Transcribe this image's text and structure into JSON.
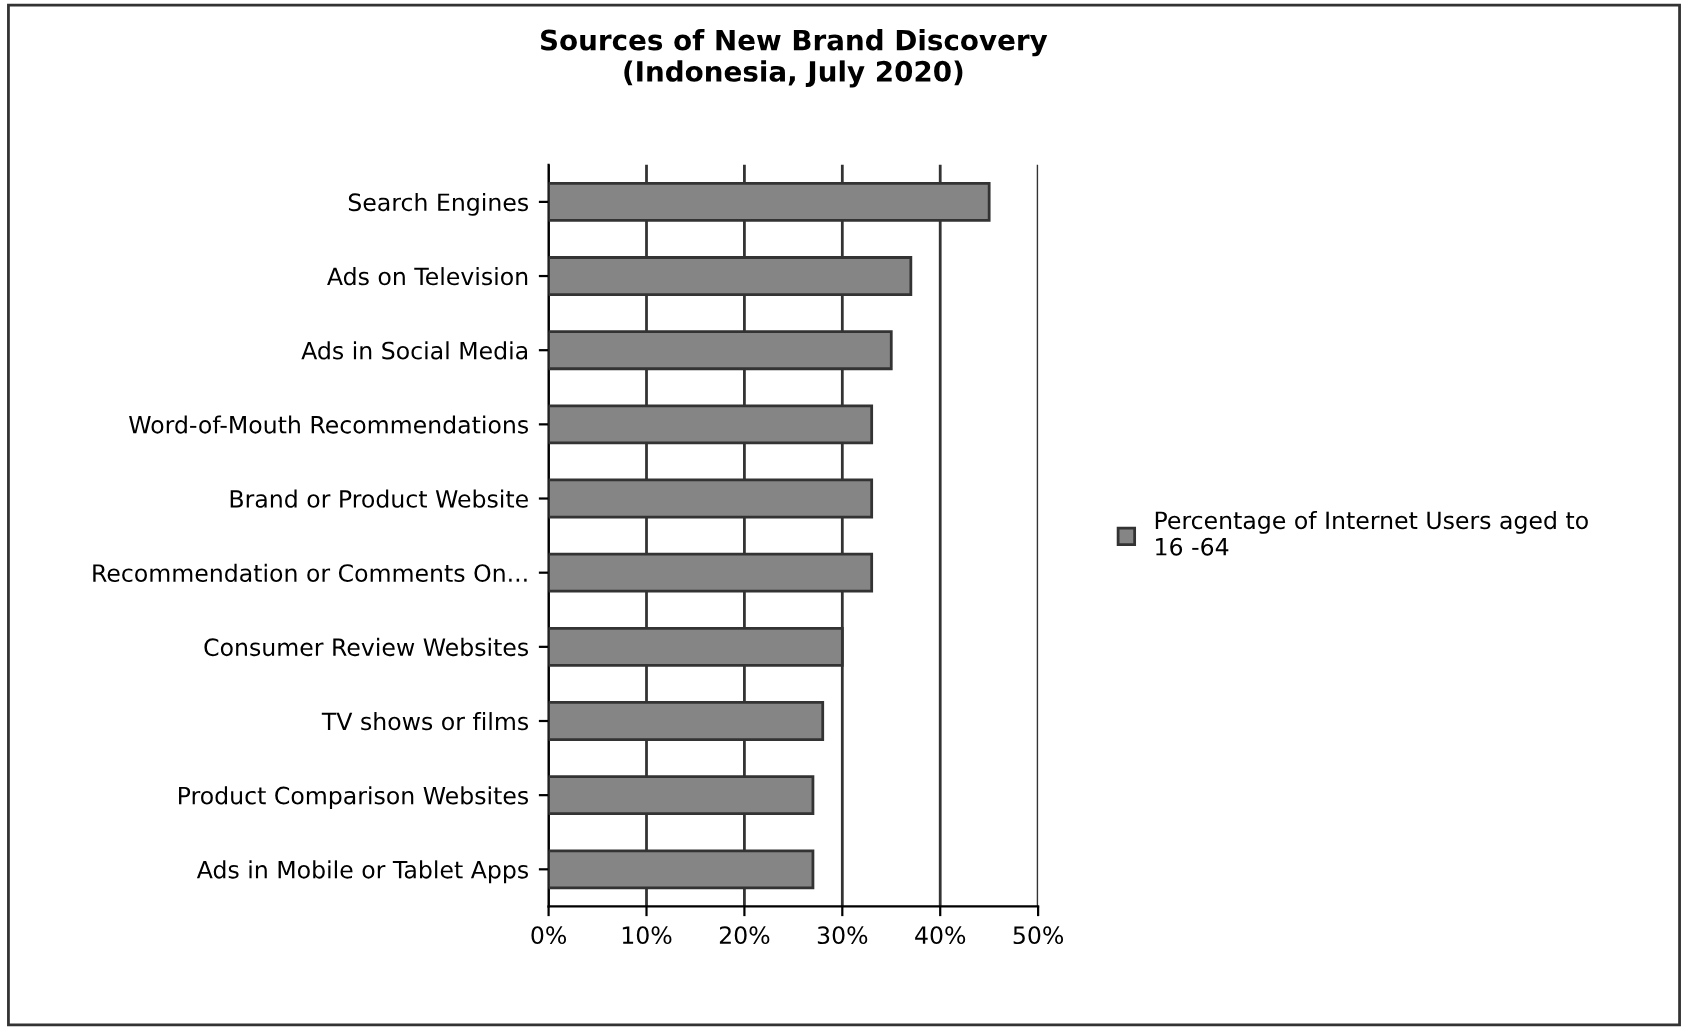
{
  "chart_data": {
    "type": "bar",
    "orientation": "horizontal",
    "title": "Sources of New Brand Discovery\n(Indonesia, July 2020)",
    "categories": [
      "Search Engines",
      "Ads on Television",
      "Ads in Social Media",
      "Word-of-Mouth Recommendations",
      "Brand or Product Website",
      "Recommendation or Comments On...",
      "Consumer Review Websites",
      "TV shows or films",
      "Product Comparison Websites",
      "Ads in Mobile or Tablet Apps"
    ],
    "series": [
      {
        "name": "Percentage of Internet Users aged to\n16 -64",
        "color": "#858585",
        "values": [
          45,
          37,
          35,
          33,
          33,
          33,
          30,
          28,
          27,
          27
        ]
      }
    ],
    "xlim": [
      0,
      50
    ],
    "xticks": [
      {
        "value": 0,
        "label": "0%"
      },
      {
        "value": 10,
        "label": "10%"
      },
      {
        "value": 20,
        "label": "20%"
      },
      {
        "value": 30,
        "label": "30%"
      },
      {
        "value": 40,
        "label": "40%"
      },
      {
        "value": 50,
        "label": "50%"
      }
    ],
    "grid": "x",
    "legend": "right"
  }
}
